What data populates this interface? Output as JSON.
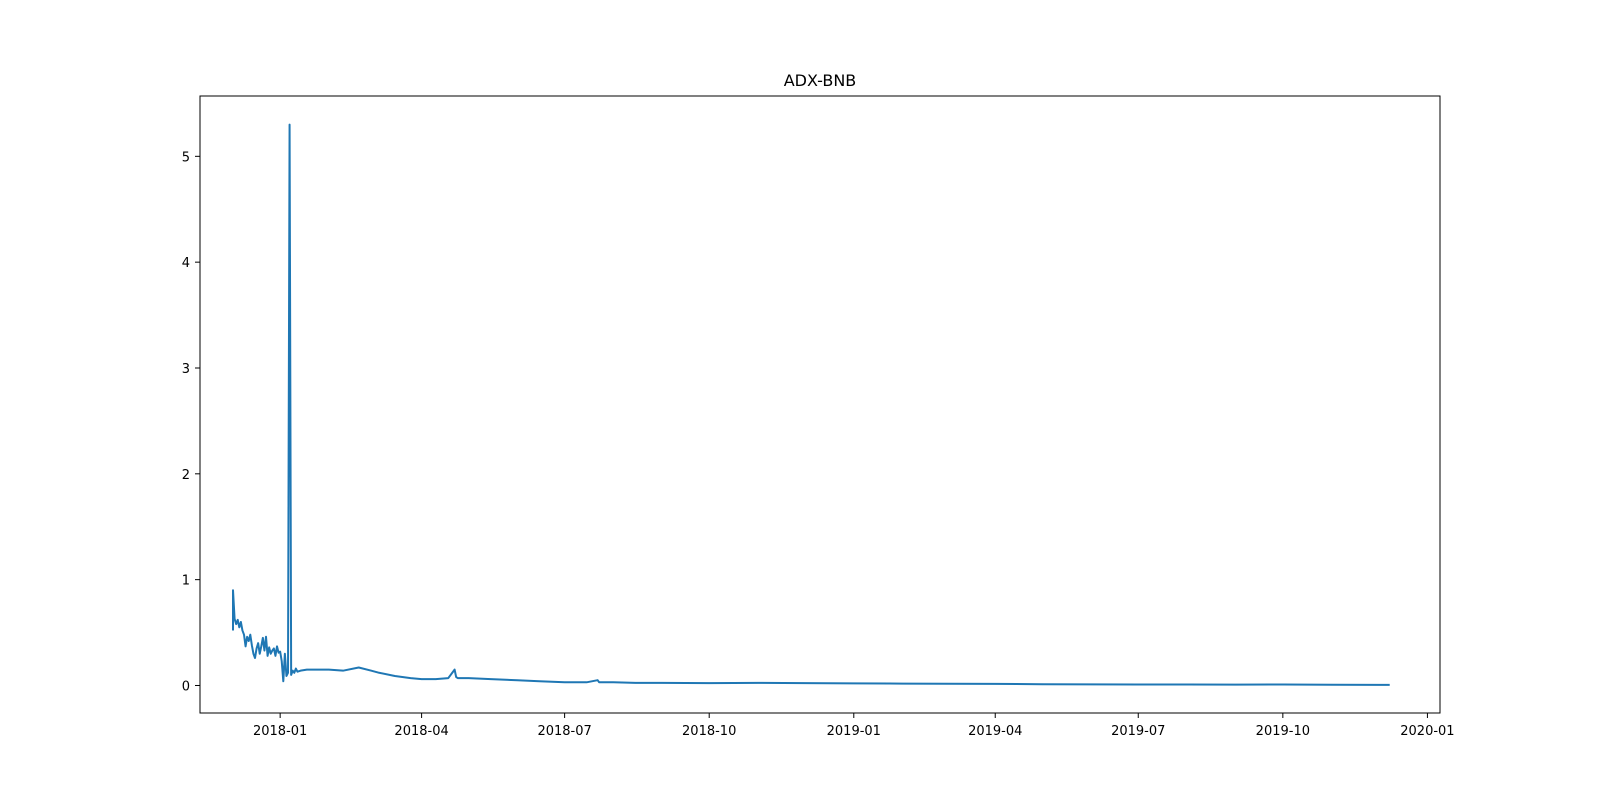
{
  "chart_data": {
    "type": "line",
    "title": "ADX-BNB",
    "xlabel": "",
    "ylabel": "",
    "x_is_date": true,
    "xlim": [
      "2017-11-11",
      "2020-01-09"
    ],
    "ylim": [
      -0.26,
      5.57
    ],
    "x_ticks": [
      "2018-01",
      "2018-04",
      "2018-07",
      "2018-10",
      "2019-01",
      "2019-04",
      "2019-07",
      "2019-10",
      "2020-01"
    ],
    "x_tick_dates": [
      "2018-01-01",
      "2018-04-01",
      "2018-07-01",
      "2018-10-01",
      "2019-01-01",
      "2019-04-01",
      "2019-07-01",
      "2019-10-01",
      "2020-01-01"
    ],
    "y_ticks": [
      0,
      1,
      2,
      3,
      4,
      5
    ],
    "grid": false,
    "legend": "none",
    "color": "#1f77b4",
    "series": [
      {
        "x": [
          "2017-12-02",
          "2017-12-02",
          "2017-12-03",
          "2017-12-04",
          "2017-12-05",
          "2017-12-06",
          "2017-12-07",
          "2017-12-08",
          "2017-12-09",
          "2017-12-10",
          "2017-12-11",
          "2017-12-12",
          "2017-12-13",
          "2017-12-14",
          "2017-12-15",
          "2017-12-16",
          "2017-12-17",
          "2017-12-18",
          "2017-12-19",
          "2017-12-20",
          "2017-12-21",
          "2017-12-22",
          "2017-12-23",
          "2017-12-24",
          "2017-12-25",
          "2017-12-26",
          "2017-12-27",
          "2017-12-28",
          "2017-12-29",
          "2017-12-30",
          "2017-12-31",
          "2018-01-01",
          "2018-01-02",
          "2018-01-03",
          "2018-01-04",
          "2018-01-05",
          "2018-01-06",
          "2018-01-07",
          "2018-01-08",
          "2018-01-09",
          "2018-01-10",
          "2018-01-11",
          "2018-01-12",
          "2018-01-14",
          "2018-01-18",
          "2018-01-25",
          "2018-02-01",
          "2018-02-10",
          "2018-02-20",
          "2018-02-28",
          "2018-03-05",
          "2018-03-15",
          "2018-03-25",
          "2018-04-01",
          "2018-04-10",
          "2018-04-18",
          "2018-04-22",
          "2018-04-23",
          "2018-04-24",
          "2018-05-01",
          "2018-05-15",
          "2018-06-01",
          "2018-06-15",
          "2018-07-01",
          "2018-07-15",
          "2018-07-22",
          "2018-07-23",
          "2018-08-01",
          "2018-08-15",
          "2018-09-01",
          "2018-10-01",
          "2018-11-01",
          "2018-12-01",
          "2019-01-01",
          "2019-02-01",
          "2019-03-01",
          "2019-04-01",
          "2019-05-01",
          "2019-06-01",
          "2019-07-01",
          "2019-08-01",
          "2019-09-01",
          "2019-10-01",
          "2019-11-01",
          "2019-12-01",
          "2019-12-08"
        ],
        "y": [
          0.52,
          0.9,
          0.63,
          0.58,
          0.62,
          0.55,
          0.6,
          0.52,
          0.48,
          0.37,
          0.46,
          0.42,
          0.48,
          0.38,
          0.3,
          0.26,
          0.35,
          0.4,
          0.3,
          0.37,
          0.45,
          0.33,
          0.46,
          0.28,
          0.36,
          0.3,
          0.33,
          0.35,
          0.28,
          0.37,
          0.31,
          0.32,
          0.23,
          0.04,
          0.3,
          0.09,
          0.12,
          5.3,
          0.1,
          0.14,
          0.12,
          0.16,
          0.13,
          0.14,
          0.15,
          0.15,
          0.15,
          0.14,
          0.17,
          0.14,
          0.12,
          0.09,
          0.07,
          0.06,
          0.06,
          0.07,
          0.15,
          0.08,
          0.07,
          0.07,
          0.06,
          0.05,
          0.04,
          0.03,
          0.03,
          0.05,
          0.03,
          0.03,
          0.025,
          0.025,
          0.022,
          0.025,
          0.022,
          0.02,
          0.018,
          0.016,
          0.015,
          0.012,
          0.01,
          0.009,
          0.009,
          0.008,
          0.009,
          0.007,
          0.006,
          0.006
        ]
      }
    ]
  }
}
